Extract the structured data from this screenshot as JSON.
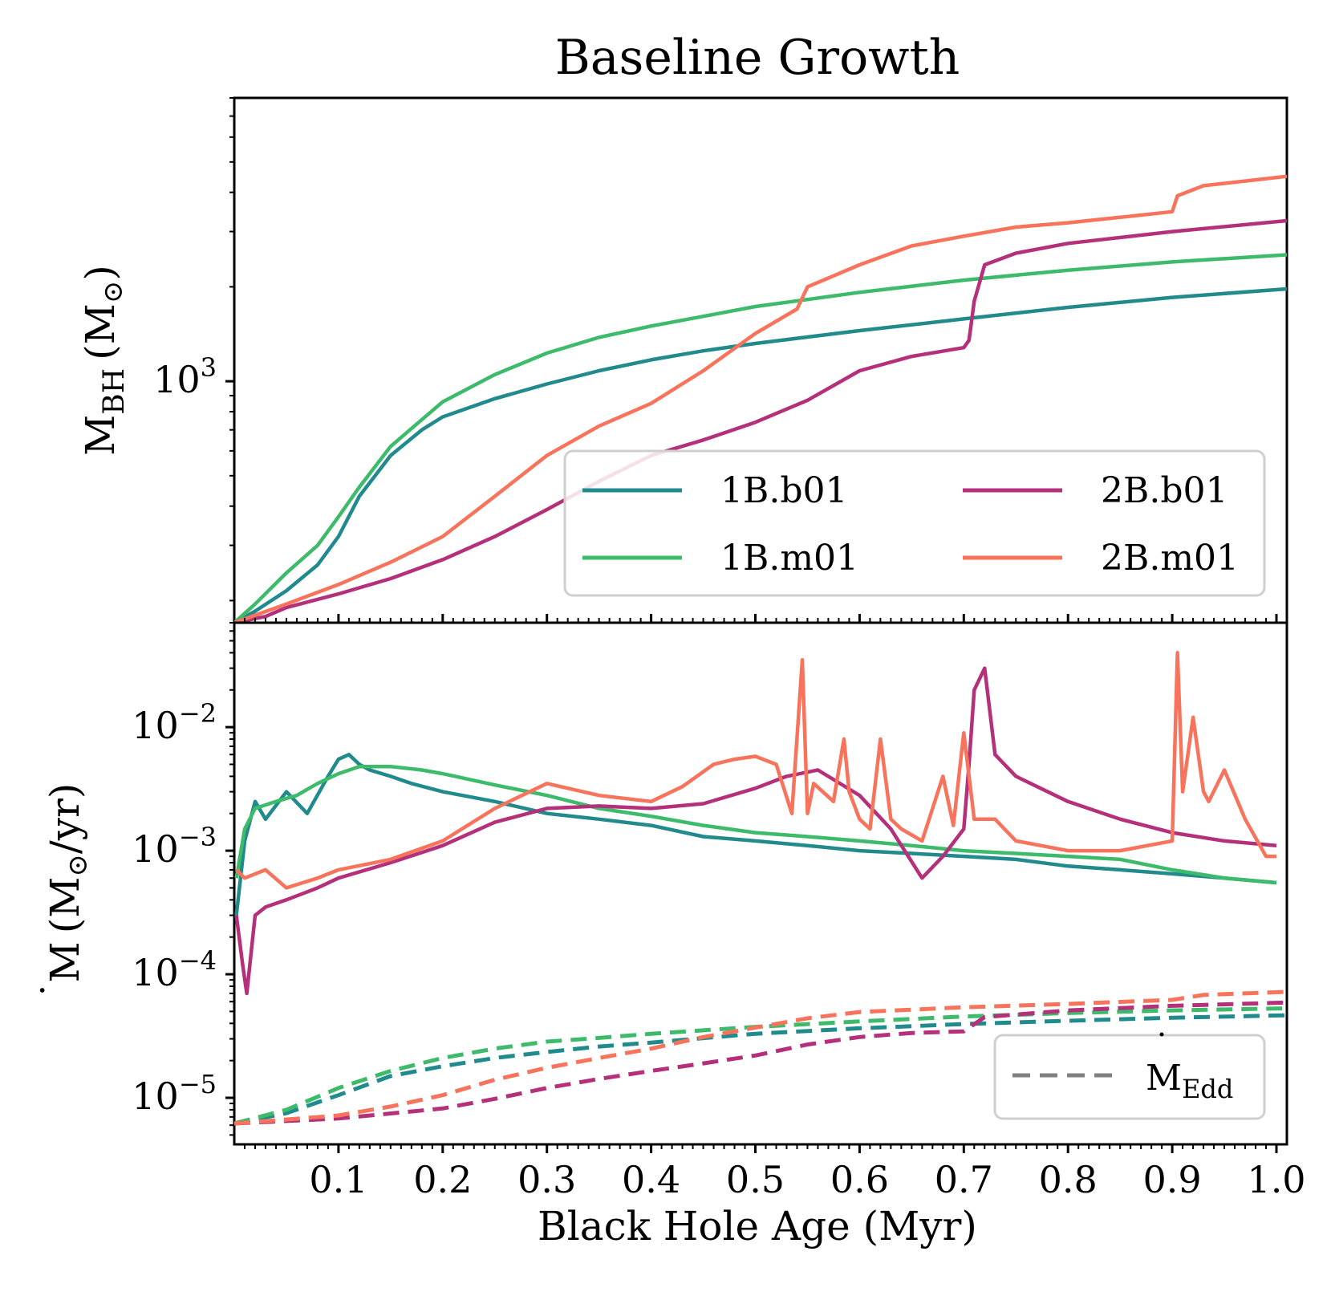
{
  "chart_data": {
    "title": "Baseline Growth",
    "xlabel": "Black Hole Age (Myr)",
    "xlim": [
      0.0,
      1.01
    ],
    "x_ticks": [
      0.1,
      0.2,
      0.3,
      0.4,
      0.5,
      0.6,
      0.7,
      0.8,
      0.9,
      1.0
    ],
    "x_tick_labels": [
      "0.1",
      "0.2",
      "0.3",
      "0.4",
      "0.5",
      "0.6",
      "0.7",
      "0.8",
      "0.9",
      "1.0"
    ],
    "colors": {
      "1B.b01": "#218a8d",
      "1B.m01": "#3dbb6a",
      "2B.b01": "#b5307a",
      "2B.m01": "#f8735b",
      "edd_legend": "#808080"
    },
    "top_panel": {
      "type": "line",
      "yscale": "log",
      "ylabel_main": "M",
      "ylabel_sub": "BH",
      "ylabel_unit_open": "(M",
      "ylabel_unit_sun": "⊙",
      "ylabel_unit_close": ")",
      "ylim": [
        170,
        8000
      ],
      "y_major_ticks": [
        {
          "value": 1000,
          "base": "10",
          "exp": "3"
        }
      ],
      "legend": {
        "placement": "lower-right",
        "columns": 2,
        "entries": [
          "1B.b01",
          "1B.m01",
          "2B.b01",
          "2B.m01"
        ]
      },
      "series": [
        {
          "name": "1B.b01",
          "x": [
            0.0,
            0.02,
            0.05,
            0.08,
            0.1,
            0.12,
            0.15,
            0.18,
            0.2,
            0.25,
            0.3,
            0.35,
            0.4,
            0.45,
            0.5,
            0.6,
            0.7,
            0.8,
            0.9,
            1.01
          ],
          "y": [
            170,
            185,
            215,
            260,
            320,
            430,
            580,
            700,
            770,
            880,
            980,
            1080,
            1170,
            1250,
            1320,
            1450,
            1580,
            1720,
            1850,
            1970
          ]
        },
        {
          "name": "1B.m01",
          "x": [
            0.0,
            0.02,
            0.05,
            0.08,
            0.1,
            0.12,
            0.15,
            0.2,
            0.25,
            0.3,
            0.35,
            0.4,
            0.45,
            0.5,
            0.6,
            0.7,
            0.8,
            0.9,
            1.01
          ],
          "y": [
            170,
            195,
            245,
            300,
            370,
            460,
            620,
            860,
            1050,
            1230,
            1380,
            1500,
            1610,
            1730,
            1920,
            2100,
            2260,
            2400,
            2530
          ]
        },
        {
          "name": "2B.b01",
          "x": [
            0.0,
            0.03,
            0.05,
            0.1,
            0.15,
            0.2,
            0.25,
            0.3,
            0.35,
            0.4,
            0.45,
            0.5,
            0.55,
            0.6,
            0.65,
            0.7,
            0.705,
            0.71,
            0.72,
            0.75,
            0.8,
            0.9,
            1.01
          ],
          "y": [
            170,
            178,
            190,
            210,
            235,
            270,
            320,
            390,
            480,
            580,
            650,
            740,
            870,
            1080,
            1200,
            1280,
            1350,
            1800,
            2350,
            2560,
            2750,
            3000,
            3250
          ]
        },
        {
          "name": "2B.m01",
          "x": [
            0.0,
            0.05,
            0.1,
            0.15,
            0.2,
            0.25,
            0.3,
            0.35,
            0.4,
            0.45,
            0.5,
            0.54,
            0.55,
            0.6,
            0.65,
            0.7,
            0.75,
            0.8,
            0.85,
            0.9,
            0.905,
            0.93,
            1.01
          ],
          "y": [
            170,
            195,
            225,
            265,
            320,
            430,
            580,
            720,
            850,
            1080,
            1420,
            1700,
            2000,
            2350,
            2700,
            2900,
            3100,
            3200,
            3330,
            3470,
            3900,
            4200,
            4500
          ]
        }
      ]
    },
    "bottom_panel": {
      "type": "line",
      "yscale": "log",
      "ylabel_dot": "˙",
      "ylabel_main": "M",
      "ylabel_unit_open": "(M",
      "ylabel_unit_sun": "⊙",
      "ylabel_unit_close": "/yr)",
      "ylim": [
        4.2e-06,
        0.07
      ],
      "y_major_ticks": [
        {
          "value": 0.01,
          "base": "10",
          "exp": "−2"
        },
        {
          "value": 0.001,
          "base": "10",
          "exp": "−3"
        },
        {
          "value": 0.0001,
          "base": "10",
          "exp": "−4"
        },
        {
          "value": 1e-05,
          "base": "10",
          "exp": "−5"
        }
      ],
      "legend": {
        "placement": "lower-right",
        "entries": [
          {
            "style": "dashed",
            "dot": "˙",
            "main": "M",
            "sub": "Edd"
          }
        ]
      },
      "series": [
        {
          "name": "1B.b01",
          "style": "solid",
          "x": [
            0.002,
            0.01,
            0.02,
            0.03,
            0.05,
            0.07,
            0.09,
            0.1,
            0.11,
            0.12,
            0.13,
            0.15,
            0.17,
            0.2,
            0.25,
            0.3,
            0.35,
            0.4,
            0.45,
            0.5,
            0.55,
            0.6,
            0.65,
            0.7,
            0.75,
            0.8,
            0.85,
            0.9,
            0.95,
            1.0
          ],
          "y": [
            0.0003,
            0.0012,
            0.0025,
            0.0018,
            0.003,
            0.002,
            0.004,
            0.0055,
            0.006,
            0.005,
            0.0045,
            0.004,
            0.0035,
            0.003,
            0.0025,
            0.002,
            0.0018,
            0.0016,
            0.0013,
            0.0012,
            0.0011,
            0.001,
            0.00095,
            0.0009,
            0.00085,
            0.00075,
            0.0007,
            0.00065,
            0.0006,
            0.00055
          ]
        },
        {
          "name": "1B.m01",
          "style": "solid",
          "x": [
            0.002,
            0.01,
            0.02,
            0.04,
            0.06,
            0.08,
            0.1,
            0.12,
            0.15,
            0.18,
            0.2,
            0.25,
            0.3,
            0.35,
            0.4,
            0.45,
            0.5,
            0.55,
            0.6,
            0.65,
            0.7,
            0.75,
            0.8,
            0.85,
            0.9,
            0.95,
            1.0
          ],
          "y": [
            0.0006,
            0.0015,
            0.0022,
            0.0025,
            0.0028,
            0.0035,
            0.0042,
            0.0048,
            0.0048,
            0.0045,
            0.0042,
            0.0034,
            0.0028,
            0.0022,
            0.0019,
            0.0016,
            0.0014,
            0.0013,
            0.0012,
            0.0011,
            0.001,
            0.00095,
            0.0009,
            0.00085,
            0.0007,
            0.0006,
            0.00055
          ]
        },
        {
          "name": "2B.b01",
          "style": "solid",
          "x": [
            0.002,
            0.008,
            0.012,
            0.02,
            0.03,
            0.05,
            0.08,
            0.1,
            0.15,
            0.2,
            0.25,
            0.3,
            0.35,
            0.4,
            0.45,
            0.5,
            0.53,
            0.56,
            0.6,
            0.63,
            0.66,
            0.68,
            0.7,
            0.705,
            0.71,
            0.72,
            0.73,
            0.75,
            0.8,
            0.85,
            0.9,
            0.95,
            1.0
          ],
          "y": [
            0.0003,
            0.00012,
            7e-05,
            0.0003,
            0.00035,
            0.0004,
            0.0005,
            0.0006,
            0.0008,
            0.0011,
            0.0017,
            0.0022,
            0.0023,
            0.0022,
            0.0024,
            0.0032,
            0.004,
            0.0045,
            0.0028,
            0.0015,
            0.0006,
            0.0009,
            0.0015,
            0.005,
            0.02,
            0.03,
            0.006,
            0.004,
            0.0025,
            0.0018,
            0.0014,
            0.0012,
            0.0011
          ]
        },
        {
          "name": "2B.m01",
          "style": "solid",
          "x": [
            0.002,
            0.01,
            0.03,
            0.05,
            0.08,
            0.1,
            0.15,
            0.2,
            0.25,
            0.3,
            0.35,
            0.4,
            0.43,
            0.46,
            0.48,
            0.5,
            0.52,
            0.535,
            0.545,
            0.55,
            0.556,
            0.575,
            0.585,
            0.59,
            0.6,
            0.61,
            0.62,
            0.63,
            0.64,
            0.66,
            0.68,
            0.69,
            0.7,
            0.71,
            0.73,
            0.75,
            0.8,
            0.85,
            0.9,
            0.905,
            0.91,
            0.92,
            0.93,
            0.935,
            0.95,
            0.97,
            0.99,
            1.0
          ],
          "y": [
            0.0007,
            0.0006,
            0.0007,
            0.0005,
            0.0006,
            0.0007,
            0.00085,
            0.0012,
            0.0022,
            0.0035,
            0.0028,
            0.0025,
            0.0033,
            0.005,
            0.0055,
            0.0058,
            0.005,
            0.002,
            0.035,
            0.002,
            0.0035,
            0.0025,
            0.008,
            0.003,
            0.0018,
            0.0015,
            0.008,
            0.0018,
            0.0015,
            0.0012,
            0.004,
            0.0016,
            0.009,
            0.0018,
            0.0018,
            0.0012,
            0.001,
            0.001,
            0.0012,
            0.04,
            0.003,
            0.012,
            0.003,
            0.0025,
            0.0045,
            0.0018,
            0.0009,
            0.0009
          ]
        },
        {
          "name": "1B.b01",
          "style": "dashed",
          "x": [
            0.0,
            0.05,
            0.1,
            0.15,
            0.2,
            0.25,
            0.3,
            0.35,
            0.4,
            0.5,
            0.6,
            0.7,
            0.8,
            0.9,
            1.01
          ],
          "y": [
            6.2e-06,
            7.5e-06,
            1.05e-05,
            1.5e-05,
            1.8e-05,
            2.1e-05,
            2.35e-05,
            2.6e-05,
            2.8e-05,
            3.3e-05,
            3.65e-05,
            3.95e-05,
            4.2e-05,
            4.45e-05,
            4.65e-05
          ]
        },
        {
          "name": "1B.m01",
          "style": "dashed",
          "x": [
            0.0,
            0.05,
            0.1,
            0.15,
            0.2,
            0.25,
            0.3,
            0.35,
            0.4,
            0.5,
            0.6,
            0.7,
            0.8,
            0.9,
            1.01
          ],
          "y": [
            6.2e-06,
            8e-06,
            1.2e-05,
            1.65e-05,
            2.1e-05,
            2.5e-05,
            2.85e-05,
            3.05e-05,
            3.3e-05,
            3.75e-05,
            4.15e-05,
            4.55e-05,
            4.85e-05,
            5.1e-05,
            5.3e-05
          ]
        },
        {
          "name": "2B.b01",
          "style": "dashed",
          "x": [
            0.0,
            0.1,
            0.2,
            0.25,
            0.3,
            0.35,
            0.4,
            0.45,
            0.5,
            0.55,
            0.6,
            0.65,
            0.7,
            0.72,
            0.8,
            0.9,
            1.01
          ],
          "y": [
            6.2e-06,
            6.8e-06,
            8.2e-06,
            9.8e-06,
            1.2e-05,
            1.42e-05,
            1.65e-05,
            1.9e-05,
            2.2e-05,
            2.7e-05,
            3.1e-05,
            3.35e-05,
            3.45e-05,
            4.5e-05,
            5.1e-05,
            5.55e-05,
            5.9e-05
          ]
        },
        {
          "name": "2B.m01",
          "style": "dashed",
          "x": [
            0.0,
            0.1,
            0.15,
            0.2,
            0.25,
            0.3,
            0.35,
            0.4,
            0.45,
            0.5,
            0.55,
            0.6,
            0.7,
            0.8,
            0.9,
            0.93,
            1.01
          ],
          "y": [
            6.2e-06,
            7.2e-06,
            8.5e-06,
            1.05e-05,
            1.4e-05,
            1.75e-05,
            2.1e-05,
            2.5e-05,
            3.1e-05,
            3.7e-05,
            4.4e-05,
            4.95e-05,
            5.4e-05,
            5.75e-05,
            6.2e-05,
            6.8e-05,
            7.2e-05
          ]
        }
      ]
    }
  }
}
